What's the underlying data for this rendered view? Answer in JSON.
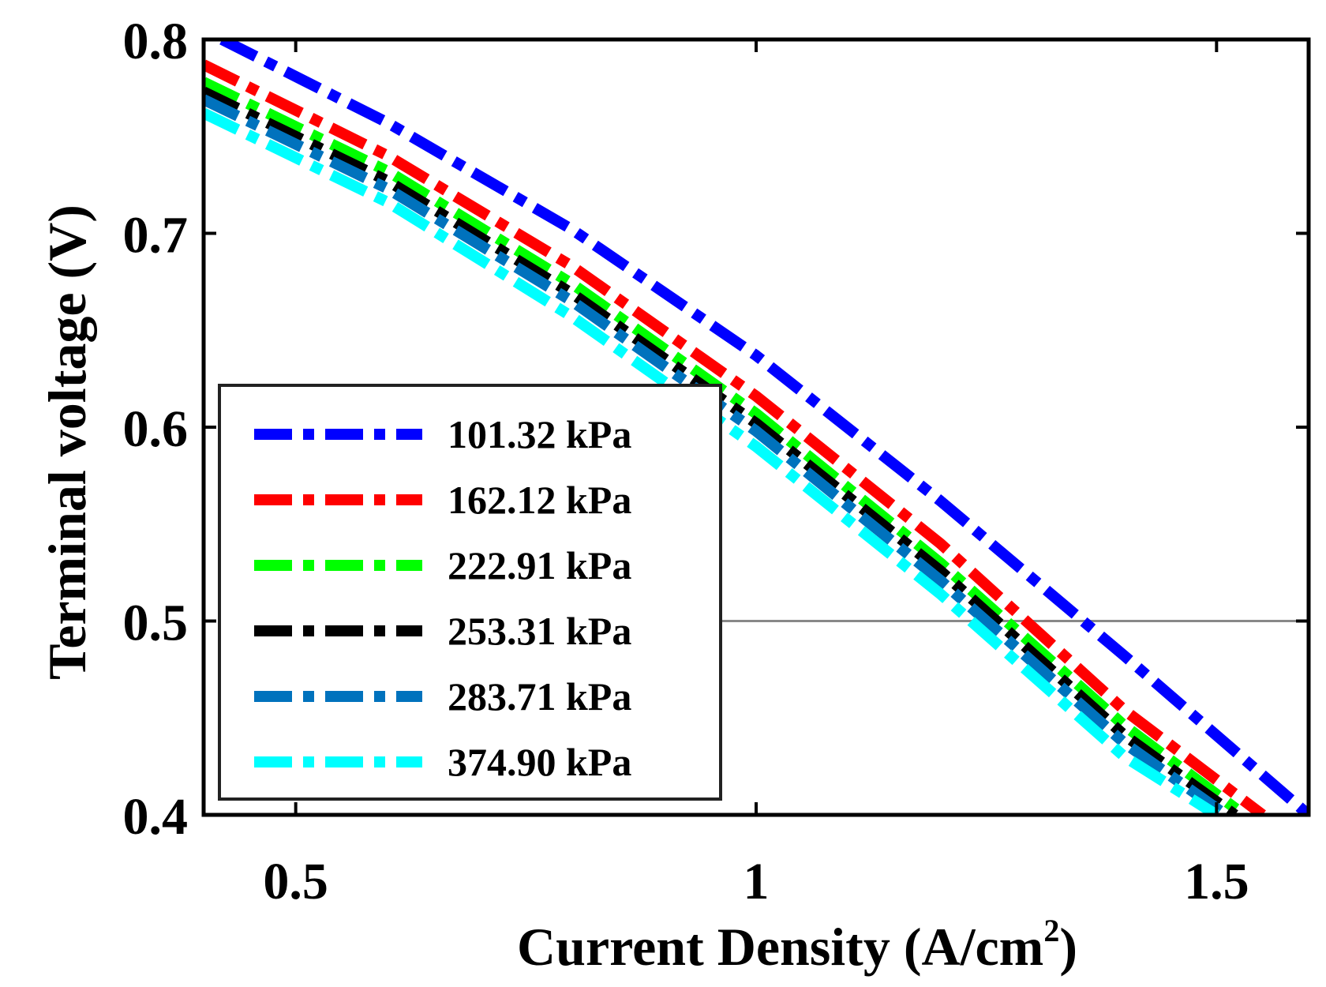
{
  "chart_data": {
    "type": "line",
    "title": "",
    "xlabel": "Current Density (A/cm",
    "xlabel_sup": "2",
    "xlabel_close": ")",
    "ylabel": "Terminal voltage (V)",
    "xlim": [
      0.4,
      1.6
    ],
    "ylim": [
      0.4,
      0.8
    ],
    "x_ticks": [
      0.5,
      1,
      1.5
    ],
    "x_tick_labels": [
      "0.5",
      "1",
      "1.5"
    ],
    "y_ticks": [
      0.4,
      0.5,
      0.6,
      0.7,
      0.8
    ],
    "y_tick_labels": [
      "0.4",
      "0.5",
      "0.6",
      "0.7",
      "0.8"
    ],
    "reference_line": {
      "y": 0.5,
      "x_from": 0.96,
      "x_to": 1.6,
      "color": "#888888"
    },
    "legend_position": "lower-left",
    "series": [
      {
        "name": "101.32 kPa",
        "color": "#0000FF",
        "x": [
          0.42,
          0.6,
          0.8,
          1.0,
          1.2,
          1.4,
          1.6
        ],
        "values": [
          0.8,
          0.757,
          0.702,
          0.637,
          0.562,
          0.482,
          0.4
        ]
      },
      {
        "name": "162.12 kPa",
        "color": "#FF0000",
        "x": [
          0.4,
          0.6,
          0.8,
          1.0,
          1.2,
          1.4,
          1.55
        ],
        "values": [
          0.787,
          0.74,
          0.683,
          0.616,
          0.54,
          0.454,
          0.4
        ]
      },
      {
        "name": "222.91 kPa",
        "color": "#00FF00",
        "x": [
          0.4,
          0.6,
          0.8,
          1.0,
          1.2,
          1.4,
          1.53
        ],
        "values": [
          0.778,
          0.732,
          0.674,
          0.607,
          0.53,
          0.446,
          0.4
        ]
      },
      {
        "name": "253.31 kPa",
        "color": "#000000",
        "x": [
          0.4,
          0.6,
          0.8,
          1.0,
          1.2,
          1.4,
          1.52
        ],
        "values": [
          0.773,
          0.727,
          0.669,
          0.602,
          0.526,
          0.441,
          0.4
        ]
      },
      {
        "name": "283.71 kPa",
        "color": "#0072BD",
        "x": [
          0.4,
          0.6,
          0.8,
          1.0,
          1.2,
          1.4,
          1.51
        ],
        "values": [
          0.769,
          0.723,
          0.665,
          0.598,
          0.521,
          0.437,
          0.4
        ]
      },
      {
        "name": "374.90 kPa",
        "color": "#00FFFF",
        "x": [
          0.4,
          0.6,
          0.8,
          1.0,
          1.2,
          1.4,
          1.5
        ],
        "values": [
          0.762,
          0.716,
          0.657,
          0.59,
          0.514,
          0.43,
          0.4
        ]
      }
    ]
  }
}
